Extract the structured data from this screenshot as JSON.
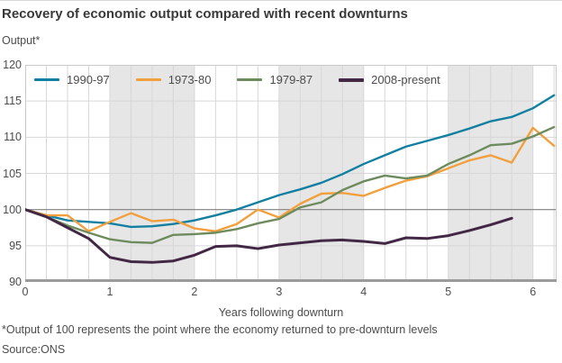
{
  "header": {
    "title": "Recovery of economic output compared with recent downturns"
  },
  "footnotes": {
    "note": "*Output of 100 represents the point where the economy returned to pre-downturn levels",
    "source": "Source:ONS"
  },
  "colors": {
    "band": "#E6E6E6",
    "grid": "#D7D7D7",
    "frame": "#C9C9C9",
    "axis": "#9B9B9B",
    "reference_line": "#7F7F7F",
    "title_text": "#3A3A3A",
    "text": "#4C4C4C"
  },
  "chart_data": {
    "type": "line",
    "title": "Recovery of economic output compared with recent downturns",
    "ylabel": "Output*",
    "xlabel": "Years following downturn",
    "xlim": [
      0,
      6.28
    ],
    "ylim": [
      90,
      120
    ],
    "x_ticks": [
      0,
      1,
      2,
      3,
      4,
      5,
      6
    ],
    "y_ticks": [
      90,
      95,
      100,
      105,
      110,
      115,
      120
    ],
    "x_minor_step": 0.25,
    "grid": true,
    "legend_position": "top-inside",
    "reference_line_y": 100,
    "shaded_x_bands": [
      [
        1,
        2
      ],
      [
        3,
        4
      ],
      [
        5,
        6
      ]
    ],
    "x_step": 0.25,
    "series": [
      {
        "name": "1990-97",
        "color": "#1380A1",
        "x_start": 0,
        "values": [
          100,
          99.2,
          98.5,
          98.3,
          98.1,
          97.6,
          97.7,
          98.0,
          98.5,
          99.2,
          100.0,
          101.0,
          102.0,
          102.8,
          103.7,
          104.9,
          106.3,
          107.5,
          108.7,
          109.5,
          110.3,
          111.2,
          112.2,
          112.8,
          114.0,
          115.8
        ]
      },
      {
        "name": "1973-80",
        "color": "#F2A03E",
        "x_start": 0,
        "values": [
          100,
          99.2,
          99.2,
          97.0,
          98.3,
          99.5,
          98.4,
          98.6,
          97.4,
          97.0,
          98.0,
          100.0,
          98.9,
          100.8,
          102.2,
          102.3,
          101.9,
          103.0,
          104.0,
          104.6,
          105.7,
          106.8,
          107.5,
          106.5,
          111.3,
          108.8
        ]
      },
      {
        "name": "1979-87",
        "color": "#6D8B5D",
        "x_start": 0,
        "values": [
          100,
          99.0,
          97.8,
          96.8,
          95.9,
          95.5,
          95.4,
          96.5,
          96.6,
          96.8,
          97.3,
          98.1,
          98.7,
          100.3,
          101.0,
          102.7,
          103.9,
          104.7,
          104.3,
          104.7,
          106.3,
          107.5,
          108.9,
          109.1,
          110.1,
          111.4
        ]
      },
      {
        "name": "2008-present",
        "color": "#432845",
        "x_start": 0,
        "values": [
          100,
          99.0,
          97.5,
          96.0,
          93.4,
          92.8,
          92.7,
          92.9,
          93.7,
          94.9,
          95.0,
          94.6,
          95.1,
          95.4,
          95.7,
          95.8,
          95.6,
          95.3,
          96.1,
          96.0,
          96.4,
          97.1,
          97.9,
          98.8
        ]
      }
    ]
  }
}
